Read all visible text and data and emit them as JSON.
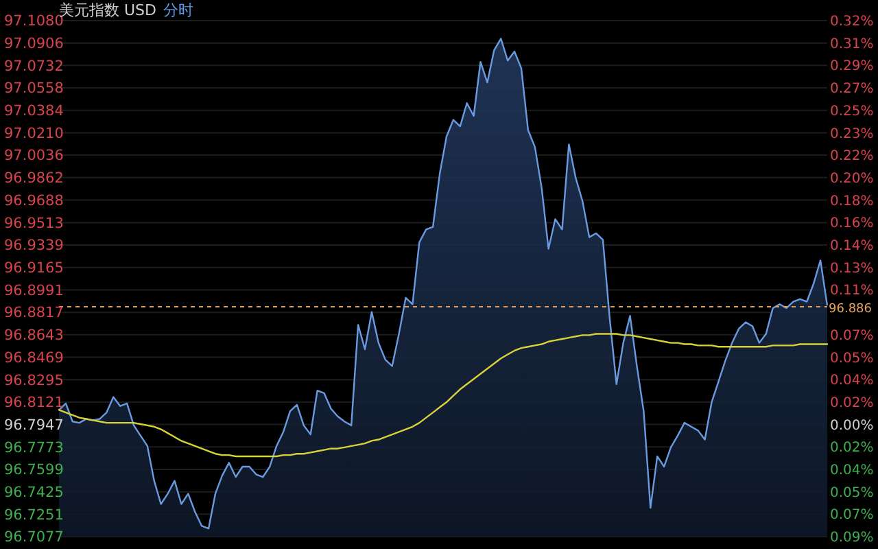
{
  "chart_data": {
    "type": "area",
    "title": "美元指数 USD",
    "subtitle": "分时",
    "categories": [
      null,
      null,
      null,
      null,
      null,
      null,
      null,
      null,
      null,
      null,
      null,
      null,
      null,
      null,
      null,
      null,
      null,
      null,
      null,
      null,
      null,
      null,
      null,
      null,
      null,
      null,
      null,
      null,
      null,
      null,
      null,
      null,
      null,
      null,
      null,
      null,
      null,
      null,
      null,
      null,
      null,
      null,
      null,
      null,
      null,
      null,
      null,
      null,
      null,
      null,
      null,
      null,
      null,
      null,
      null,
      null,
      null,
      null,
      null,
      null,
      null,
      null,
      null,
      null,
      null,
      null,
      null,
      null,
      null,
      null,
      null,
      null,
      null,
      null,
      null,
      null,
      null,
      null,
      null,
      null,
      null,
      null,
      null,
      null,
      null,
      null,
      null,
      null,
      null,
      null,
      null,
      null,
      null,
      null,
      null,
      null,
      null,
      null,
      null,
      null,
      null,
      null,
      null,
      null,
      null,
      null,
      null,
      null,
      null,
      null,
      null,
      null,
      null,
      null
    ],
    "series": [
      {
        "color": "#6a9be0",
        "values": [
          96.806,
          96.811,
          96.797,
          96.796,
          96.799,
          96.798,
          96.799,
          96.804,
          96.816,
          96.809,
          96.811,
          96.794,
          96.786,
          96.778,
          96.751,
          96.733,
          96.741,
          96.751,
          96.733,
          96.741,
          96.727,
          96.716,
          96.714,
          96.741,
          96.755,
          96.765,
          96.754,
          96.762,
          96.762,
          96.756,
          96.754,
          96.762,
          96.778,
          96.789,
          96.805,
          96.81,
          96.794,
          96.787,
          96.821,
          96.819,
          96.807,
          96.801,
          96.797,
          96.794,
          96.872,
          96.853,
          96.882,
          96.858,
          96.845,
          96.84,
          96.865,
          96.893,
          96.888,
          96.936,
          96.946,
          96.948,
          96.989,
          97.018,
          97.031,
          97.026,
          97.044,
          97.034,
          97.076,
          97.06,
          97.085,
          97.094,
          97.077,
          97.084,
          97.071,
          97.023,
          97.01,
          96.978,
          96.931,
          96.954,
          96.946,
          97.012,
          96.986,
          96.968,
          96.94,
          96.943,
          96.938,
          96.877,
          96.826,
          96.858,
          96.879,
          96.84,
          96.805,
          96.73,
          96.77,
          96.762,
          96.777,
          96.786,
          96.796,
          96.793,
          96.79,
          96.783,
          96.812,
          96.828,
          96.844,
          96.858,
          96.869,
          96.874,
          96.871,
          96.858,
          96.865,
          96.885,
          96.888,
          96.885,
          96.89,
          96.892,
          96.89,
          96.904,
          96.922,
          96.887
        ]
      },
      {
        "type": "line",
        "color": "#d8d23a",
        "values": [
          96.806,
          96.804,
          96.802,
          96.8,
          96.799,
          96.798,
          96.797,
          96.796,
          96.796,
          96.796,
          96.796,
          96.796,
          96.795,
          96.794,
          96.793,
          96.791,
          96.788,
          96.785,
          96.782,
          96.78,
          96.778,
          96.776,
          96.774,
          96.772,
          96.771,
          96.771,
          96.77,
          96.77,
          96.77,
          96.77,
          96.77,
          96.77,
          96.77,
          96.771,
          96.771,
          96.772,
          96.772,
          96.773,
          96.774,
          96.775,
          96.776,
          96.776,
          96.777,
          96.778,
          96.779,
          96.78,
          96.782,
          96.783,
          96.785,
          96.787,
          96.789,
          96.791,
          96.793,
          96.796,
          96.8,
          96.804,
          96.808,
          96.812,
          96.817,
          96.822,
          96.826,
          96.83,
          96.834,
          96.838,
          96.842,
          96.846,
          96.849,
          96.852,
          96.854,
          96.855,
          96.856,
          96.857,
          96.859,
          96.86,
          96.861,
          96.862,
          96.863,
          96.864,
          96.864,
          96.865,
          96.865,
          96.865,
          96.865,
          96.864,
          96.864,
          96.863,
          96.862,
          96.861,
          96.86,
          96.859,
          96.858,
          96.858,
          96.857,
          96.857,
          96.856,
          96.856,
          96.856,
          96.855,
          96.855,
          96.855,
          96.855,
          96.855,
          96.855,
          96.855,
          96.855,
          96.856,
          96.856,
          96.856,
          96.856,
          96.857,
          96.857,
          96.857,
          96.857,
          96.857
        ]
      }
    ],
    "ylim": [
      96.7077,
      97.108
    ],
    "yticks": [
      {
        "value": 97.108,
        "label": "97.1080"
      },
      97.0906,
      97.0732,
      97.0558,
      97.0384,
      {
        "value": 97.021,
        "label": "97.0210"
      },
      97.0036,
      96.9862,
      96.9688,
      96.9513,
      96.9339,
      96.9165,
      96.8991,
      96.8817,
      96.8643,
      96.8469,
      96.8295,
      96.8121,
      96.7947,
      96.7773,
      96.7599,
      96.7425,
      96.7251,
      96.7077
    ],
    "y2lim": [
      -0.0899,
      0.3237
    ],
    "y2ticks": [
      {
        "value": 0.3237,
        "label": "0.32%"
      },
      {
        "value": 0.3057,
        "label": "0.31%"
      },
      {
        "value": 0.2877,
        "label": "0.29%"
      },
      {
        "value": 0.2697,
        "label": "0.27%"
      },
      {
        "value": 0.2517,
        "label": "0.25%"
      },
      {
        "value": 0.2337,
        "label": "0.23%"
      },
      {
        "value": 0.2158,
        "label": "0.22%"
      },
      {
        "value": 0.1978,
        "label": "0.20%"
      },
      {
        "value": 0.1798,
        "label": "0.18%"
      },
      {
        "value": 0.1618,
        "label": "0.16%"
      },
      {
        "value": 0.1438,
        "label": "0.14%"
      },
      {
        "value": 0.1259,
        "label": "0.13%"
      },
      {
        "value": 0.1079,
        "label": "0.11%"
      },
      {
        "value": 0.0719,
        "label": "0.07%"
      },
      {
        "value": 0.0539,
        "label": "0.05%"
      },
      {
        "value": 0.036,
        "label": "0.04%"
      },
      {
        "value": 0.018,
        "label": "0.02%"
      },
      {
        "value": 0,
        "label": "0.00%"
      },
      {
        "value": -0.018,
        "label": "0.02%"
      },
      {
        "value": -0.036,
        "label": "0.04%"
      },
      {
        "value": -0.0539,
        "label": "0.05%"
      },
      {
        "value": -0.0719,
        "label": "0.07%"
      },
      {
        "value": -0.0899,
        "label": "0.09%"
      }
    ],
    "ref_lines": [
      {
        "axis": "y",
        "value": 96.886,
        "label": "96.886",
        "color": "#e0a060",
        "line_style": "dashed"
      }
    ],
    "grid": "y"
  }
}
